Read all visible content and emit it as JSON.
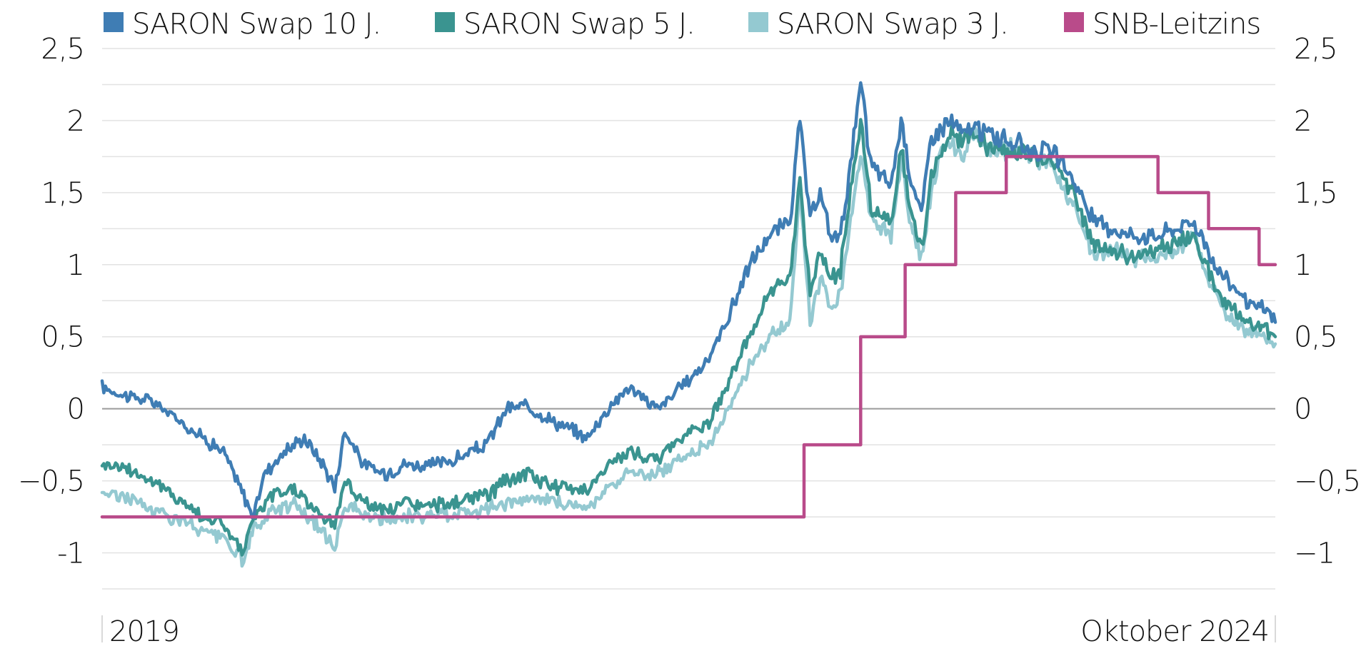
{
  "chart_data": {
    "type": "line",
    "title": "",
    "xlabel": "",
    "ylabel": "",
    "x_labels": {
      "start": "2019",
      "end": "Oktober 2024"
    },
    "x_range": [
      2019.0,
      2024.8
    ],
    "ylim": [
      -1.25,
      2.5
    ],
    "y_ticks": [
      2.5,
      2,
      1.5,
      1,
      0.5,
      0,
      -0.5,
      -1
    ],
    "y_tick_labels": [
      "2,5",
      "2",
      "1,5",
      "1",
      "0,5",
      "0",
      "−0,5",
      "-1"
    ],
    "y_tick_labels_right": [
      "2,5",
      "2",
      "1,5",
      "1",
      "0,5",
      "0",
      "−0,5",
      "−1"
    ],
    "grid": true,
    "legend_position": "top",
    "series": [
      {
        "name": "SARON Swap 10 J.",
        "color": "#3f7db4",
        "x": [
          2019.0,
          2019.1,
          2019.25,
          2019.35,
          2019.5,
          2019.6,
          2019.75,
          2019.8,
          2019.9,
          2020.0,
          2020.1,
          2020.15,
          2020.2,
          2020.3,
          2020.4,
          2020.5,
          2020.6,
          2020.75,
          2020.9,
          2021.0,
          2021.1,
          2021.25,
          2021.4,
          2021.5,
          2021.6,
          2021.75,
          2021.9,
          2022.0,
          2022.1,
          2022.2,
          2022.3,
          2022.4,
          2022.45,
          2022.5,
          2022.55,
          2022.6,
          2022.65,
          2022.7,
          2022.75,
          2022.8,
          2022.9,
          2022.95,
          2023.0,
          2023.05,
          2023.1,
          2023.15,
          2023.2,
          2023.25,
          2023.3,
          2023.4,
          2023.5,
          2023.6,
          2023.7,
          2023.8,
          2023.9,
          2024.0,
          2024.1,
          2024.2,
          2024.3,
          2024.4,
          2024.5,
          2024.55,
          2024.6,
          2024.65,
          2024.7,
          2024.75,
          2024.8
        ],
        "values": [
          0.15,
          0.1,
          0.05,
          -0.05,
          -0.2,
          -0.3,
          -0.75,
          -0.45,
          -0.3,
          -0.2,
          -0.4,
          -0.55,
          -0.15,
          -0.4,
          -0.45,
          -0.38,
          -0.4,
          -0.35,
          -0.25,
          0.0,
          0.02,
          -0.1,
          -0.2,
          0.0,
          0.15,
          0.0,
          0.2,
          0.35,
          0.65,
          1.0,
          1.2,
          1.3,
          2.0,
          1.3,
          1.5,
          1.2,
          1.2,
          1.7,
          2.25,
          1.7,
          1.55,
          2.0,
          1.6,
          1.35,
          1.9,
          1.95,
          2.0,
          1.9,
          1.95,
          1.9,
          1.85,
          1.8,
          1.78,
          1.6,
          1.3,
          1.25,
          1.2,
          1.2,
          1.25,
          1.3,
          1.0,
          0.9,
          0.85,
          0.75,
          0.7,
          0.7,
          0.6
        ]
      },
      {
        "name": "SARON Swap 5 J.",
        "color": "#3a9490",
        "x": [
          2019.0,
          2019.1,
          2019.25,
          2019.35,
          2019.5,
          2019.6,
          2019.7,
          2019.75,
          2019.85,
          2019.95,
          2020.05,
          2020.15,
          2020.2,
          2020.3,
          2020.4,
          2020.5,
          2020.6,
          2020.75,
          2020.9,
          2021.0,
          2021.1,
          2021.25,
          2021.4,
          2021.5,
          2021.6,
          2021.75,
          2021.9,
          2022.0,
          2022.1,
          2022.2,
          2022.3,
          2022.4,
          2022.45,
          2022.5,
          2022.55,
          2022.6,
          2022.65,
          2022.7,
          2022.75,
          2022.8,
          2022.9,
          2022.95,
          2023.0,
          2023.05,
          2023.1,
          2023.15,
          2023.2,
          2023.25,
          2023.3,
          2023.4,
          2023.5,
          2023.6,
          2023.7,
          2023.8,
          2023.9,
          2024.0,
          2024.1,
          2024.2,
          2024.3,
          2024.4,
          2024.5,
          2024.55,
          2024.6,
          2024.65,
          2024.7,
          2024.75,
          2024.8
        ],
        "values": [
          -0.38,
          -0.4,
          -0.5,
          -0.6,
          -0.75,
          -0.8,
          -1.0,
          -0.75,
          -0.6,
          -0.55,
          -0.7,
          -0.8,
          -0.5,
          -0.65,
          -0.72,
          -0.65,
          -0.68,
          -0.65,
          -0.6,
          -0.5,
          -0.45,
          -0.55,
          -0.55,
          -0.4,
          -0.3,
          -0.35,
          -0.15,
          -0.1,
          0.2,
          0.5,
          0.8,
          0.9,
          1.6,
          0.8,
          1.1,
          0.9,
          0.95,
          1.5,
          2.0,
          1.4,
          1.3,
          1.8,
          1.35,
          1.1,
          1.6,
          1.75,
          1.9,
          1.85,
          1.9,
          1.8,
          1.8,
          1.75,
          1.72,
          1.5,
          1.15,
          1.1,
          1.05,
          1.1,
          1.15,
          1.2,
          0.85,
          0.75,
          0.7,
          0.6,
          0.58,
          0.55,
          0.5
        ]
      },
      {
        "name": "SARON Swap 3 J.",
        "color": "#94c9d1",
        "x": [
          2019.0,
          2019.1,
          2019.25,
          2019.35,
          2019.5,
          2019.6,
          2019.7,
          2019.75,
          2019.85,
          2019.95,
          2020.05,
          2020.15,
          2020.2,
          2020.3,
          2020.4,
          2020.5,
          2020.6,
          2020.75,
          2020.9,
          2021.0,
          2021.1,
          2021.25,
          2021.4,
          2021.5,
          2021.6,
          2021.75,
          2021.9,
          2022.0,
          2022.1,
          2022.2,
          2022.3,
          2022.4,
          2022.45,
          2022.5,
          2022.55,
          2022.6,
          2022.65,
          2022.7,
          2022.75,
          2022.8,
          2022.9,
          2022.95,
          2023.0,
          2023.05,
          2023.1,
          2023.15,
          2023.2,
          2023.25,
          2023.3,
          2023.4,
          2023.5,
          2023.6,
          2023.7,
          2023.8,
          2023.9,
          2024.0,
          2024.1,
          2024.2,
          2024.3,
          2024.4,
          2024.5,
          2024.55,
          2024.6,
          2024.65,
          2024.7,
          2024.75,
          2024.8
        ],
        "values": [
          -0.58,
          -0.6,
          -0.7,
          -0.75,
          -0.85,
          -0.9,
          -1.05,
          -0.85,
          -0.7,
          -0.65,
          -0.8,
          -0.95,
          -0.65,
          -0.75,
          -0.78,
          -0.75,
          -0.75,
          -0.72,
          -0.7,
          -0.65,
          -0.62,
          -0.65,
          -0.68,
          -0.55,
          -0.45,
          -0.45,
          -0.3,
          -0.25,
          0.0,
          0.3,
          0.5,
          0.6,
          1.5,
          0.6,
          0.9,
          0.7,
          0.8,
          1.3,
          1.8,
          1.3,
          1.2,
          1.7,
          1.25,
          1.05,
          1.5,
          1.8,
          1.85,
          1.7,
          1.9,
          1.8,
          1.8,
          1.75,
          1.7,
          1.4,
          1.05,
          1.1,
          1.05,
          1.05,
          1.1,
          1.2,
          0.8,
          0.65,
          0.6,
          0.55,
          0.55,
          0.5,
          0.45
        ]
      },
      {
        "name": "SNB-Leitzins",
        "color": "#b94b8a",
        "step": true,
        "x": [
          2019.0,
          2022.47,
          2022.75,
          2022.97,
          2023.22,
          2023.47,
          2024.22,
          2024.47,
          2024.72,
          2024.8
        ],
        "values": [
          -0.75,
          -0.25,
          0.5,
          1.0,
          1.5,
          1.75,
          1.5,
          1.25,
          1.0,
          1.0
        ]
      }
    ]
  }
}
